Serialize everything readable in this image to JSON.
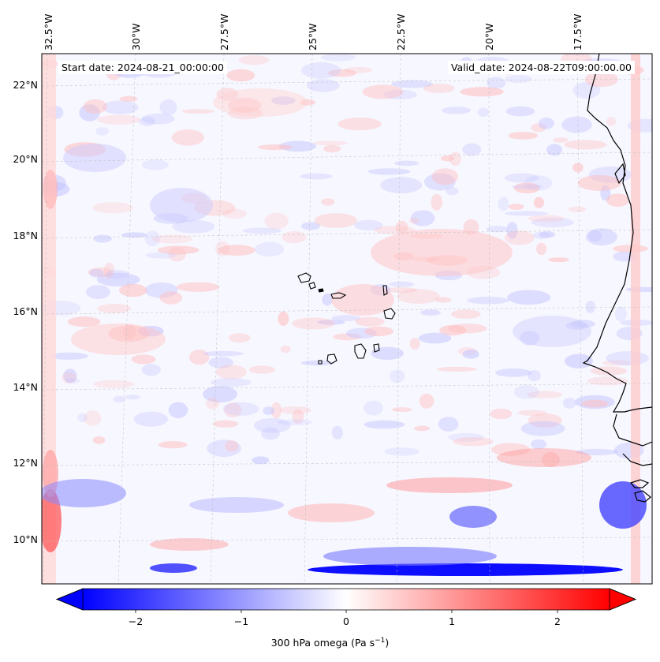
{
  "map": {
    "start_date": "Start date: 2024-08-21_00:00:00",
    "valid_date": "Valid_date: 2024-08-22T09:00:00.00",
    "lon_labels": [
      "32.5°W",
      "30°W",
      "27.5°W",
      "25°W",
      "22.5°W",
      "20°W",
      "17.5°W"
    ],
    "lat_labels": [
      "22°N",
      "20°N",
      "18°N",
      "16°N",
      "14°N",
      "12°N",
      "10°N"
    ],
    "colors": {
      "negative": "#0000ff",
      "neutral": "#ffffff",
      "positive": "#ff0000",
      "coastline": "#000000",
      "gridline": "#bbbbbb"
    }
  },
  "colorbar": {
    "ticks": [
      "−2",
      "−1",
      "0",
      "1",
      "2"
    ],
    "tick_values": [
      -2,
      -1,
      0,
      1,
      2
    ],
    "range": [
      -2.5,
      2.5
    ],
    "extend": "both",
    "label": "300 hPa omega (Pa s",
    "label_unit_exp": "−1",
    "label_close": ")"
  }
}
